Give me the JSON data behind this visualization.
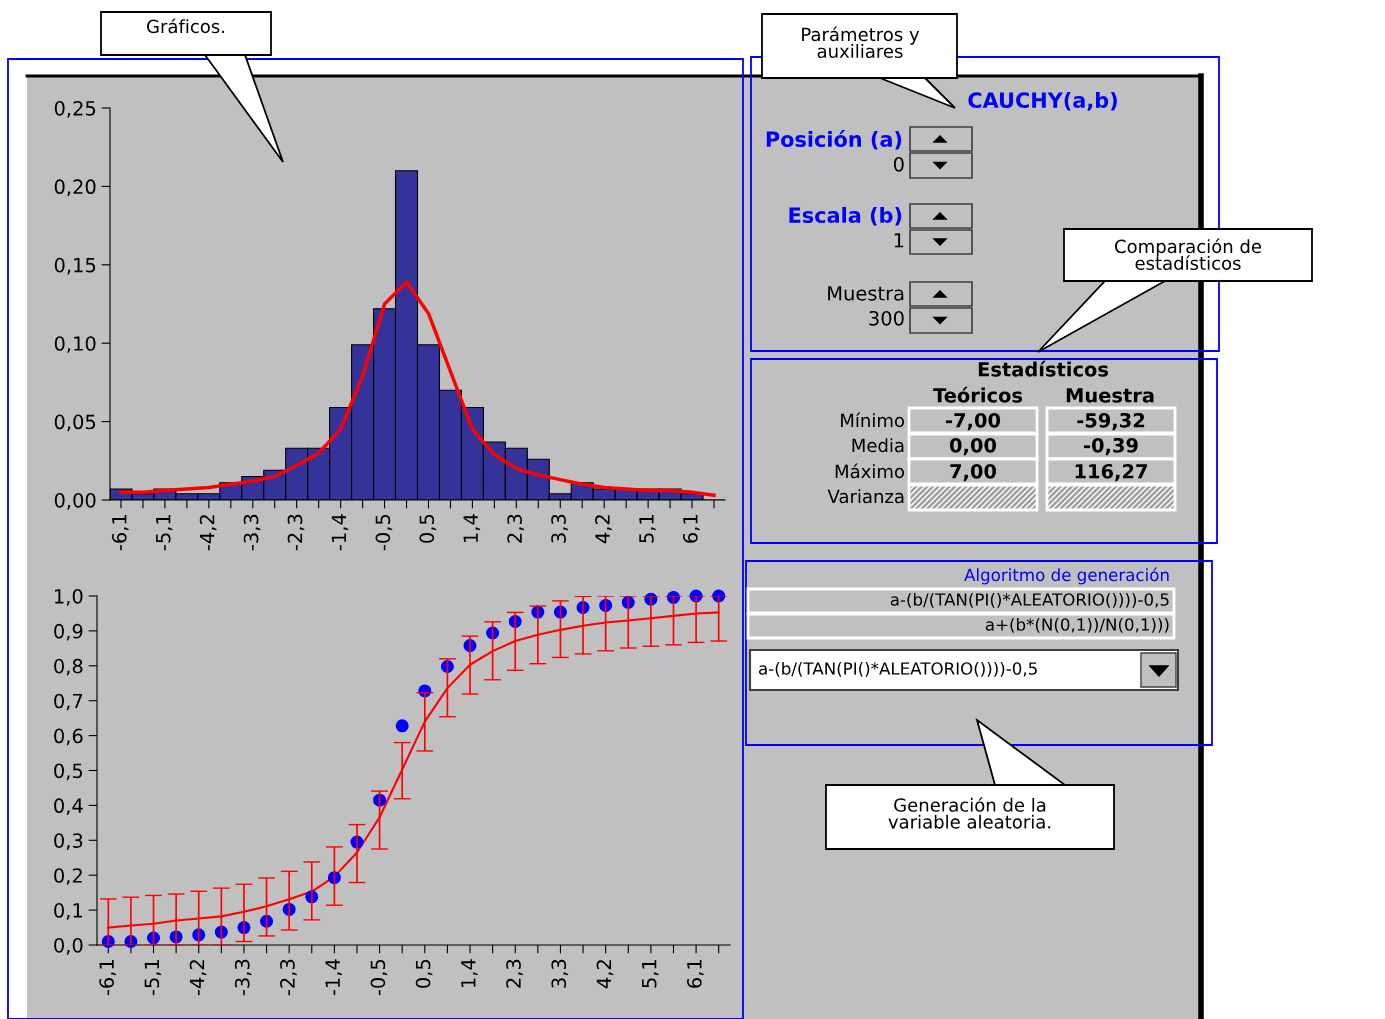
{
  "chart_data": [
    {
      "type": "bar",
      "categories": [
        "-6,1",
        null,
        "-5,1",
        null,
        "-4,2",
        null,
        "-3,3",
        null,
        "-2,3",
        null,
        "-1,4",
        null,
        "-0,5",
        null,
        "0,5",
        null,
        "1,4",
        null,
        "2,3",
        null,
        "3,3",
        null,
        "4,2",
        null,
        "5,1",
        null,
        "6,1",
        null
      ],
      "ylim": [
        0,
        0.25
      ],
      "yticks": [
        {
          "value": 0,
          "label": "0,00"
        },
        {
          "value": 0.05,
          "label": "0,05"
        },
        {
          "value": 0.1,
          "label": "0,10"
        },
        {
          "value": 0.15,
          "label": "0,15"
        },
        {
          "value": 0.2,
          "label": "0,20"
        },
        {
          "value": 0.25,
          "label": "0,25"
        }
      ],
      "series": [
        {
          "type": "bar",
          "color": "#333399",
          "values": [
            0.007,
            0.004,
            0.007,
            0.004,
            0.004,
            0.011,
            0.015,
            0.019,
            0.033,
            0.033,
            0.059,
            0.099,
            0.122,
            0.21,
            0.099,
            0.07,
            0.059,
            0.037,
            0.033,
            0.026,
            0.004,
            0.011,
            0.007,
            0.007,
            0.007,
            0.007,
            0.004,
            0
          ]
        },
        {
          "type": "line",
          "color": "#ff0000",
          "values": [
            0.005,
            0.005,
            0.006,
            0.007,
            0.008,
            0.01,
            0.012,
            0.015,
            0.022,
            0.03,
            0.045,
            0.079,
            0.125,
            0.139,
            0.119,
            0.082,
            0.045,
            0.029,
            0.02,
            0.016,
            0.013,
            0.01,
            0.008,
            0.007,
            0.006,
            0.006,
            0.005,
            0.003
          ]
        }
      ]
    },
    {
      "type": "scatter",
      "categories": [
        "-6,1",
        null,
        "-5,1",
        null,
        "-4,2",
        null,
        "-3,3",
        null,
        "-2,3",
        null,
        "-1,4",
        null,
        "-0,5",
        null,
        "0,5",
        null,
        "1,4",
        null,
        "2,3",
        null,
        "3,3",
        null,
        "4,2",
        null,
        "5,1",
        null,
        "6,1",
        null
      ],
      "ylim": [
        0,
        1
      ],
      "yticks": [
        {
          "value": 0,
          "label": "0,0"
        },
        {
          "value": 0.1,
          "label": "0,1"
        },
        {
          "value": 0.2,
          "label": "0,2"
        },
        {
          "value": 0.3,
          "label": "0,3"
        },
        {
          "value": 0.4,
          "label": "0,4"
        },
        {
          "value": 0.5,
          "label": "0,5"
        },
        {
          "value": 0.6,
          "label": "0,6"
        },
        {
          "value": 0.7,
          "label": "0,7"
        },
        {
          "value": 0.8,
          "label": "0,8"
        },
        {
          "value": 0.9,
          "label": "0,9"
        },
        {
          "value": 1,
          "label": "1,0"
        }
      ],
      "series": [
        {
          "type": "scatter",
          "color": "#0000ff",
          "marker": "circle",
          "values": [
            0.01,
            0.01,
            0.02,
            0.023,
            0.029,
            0.037,
            0.05,
            0.068,
            0.102,
            0.138,
            0.193,
            0.295,
            0.415,
            0.628,
            0.728,
            0.798,
            0.858,
            0.894,
            0.927,
            0.954,
            0.954,
            0.967,
            0.973,
            0.982,
            0.991,
            0.996,
            1.0,
            1.0
          ]
        },
        {
          "type": "line",
          "color": "#ff0000",
          "values": [
            0.05,
            0.056,
            0.061,
            0.07,
            0.076,
            0.082,
            0.095,
            0.111,
            0.131,
            0.153,
            0.196,
            0.265,
            0.366,
            0.503,
            0.64,
            0.736,
            0.803,
            0.842,
            0.871,
            0.889,
            0.903,
            0.915,
            0.924,
            0.93,
            0.936,
            0.943,
            0.95,
            0.953
          ],
          "errors": [
            [
              0,
              0.132
            ],
            [
              0,
              0.137
            ],
            [
              0,
              0.142
            ],
            [
              0,
              0.146
            ],
            [
              0,
              0.154
            ],
            [
              0,
              0.163
            ],
            [
              0.01,
              0.174
            ],
            [
              0.026,
              0.192
            ],
            [
              0.043,
              0.211
            ],
            [
              0.072,
              0.238
            ],
            [
              0.114,
              0.281
            ],
            [
              0.179,
              0.345
            ],
            [
              0.275,
              0.441
            ],
            [
              0.419,
              0.58
            ],
            [
              0.556,
              0.723
            ],
            [
              0.654,
              0.82
            ],
            [
              0.719,
              0.885
            ],
            [
              0.76,
              0.926
            ],
            [
              0.787,
              0.953
            ],
            [
              0.806,
              0.971
            ],
            [
              0.824,
              0.986
            ],
            [
              0.834,
              0.999
            ],
            [
              0.843,
              1.0
            ],
            [
              0.851,
              1.0
            ],
            [
              0.856,
              1.0
            ],
            [
              0.86,
              1.0
            ],
            [
              0.867,
              1.0
            ],
            [
              0.871,
              1.0
            ]
          ]
        }
      ]
    },
    {
      "type": "other",
      "annotations": [
        "Gráficos.",
        "Parámetros y\nauxiliares",
        "Comparación de\nestadísticos",
        "Generación de la\nvariable aleatoria.",
        "CAUCHY(a,b)",
        "Posición (a)",
        "0",
        "Escala (b)",
        "1",
        "Muestra",
        "300",
        "Estadísticos",
        "Teóricos",
        "Muestra",
        "Mínimo",
        "-7,00",
        "-59,32",
        "Media",
        "0,00",
        "-0,39",
        "Máximo",
        "7,00",
        "116,27",
        "Varianza",
        "Algoritmo de generación",
        "a-(b/(TAN(PI()*ALEATORIO())))-0,5",
        "a+(b*(N(0,1))/N(0,1)))",
        "a-(b/(TAN(PI()*ALEATORIO())))-0,5"
      ]
    }
  ]
}
